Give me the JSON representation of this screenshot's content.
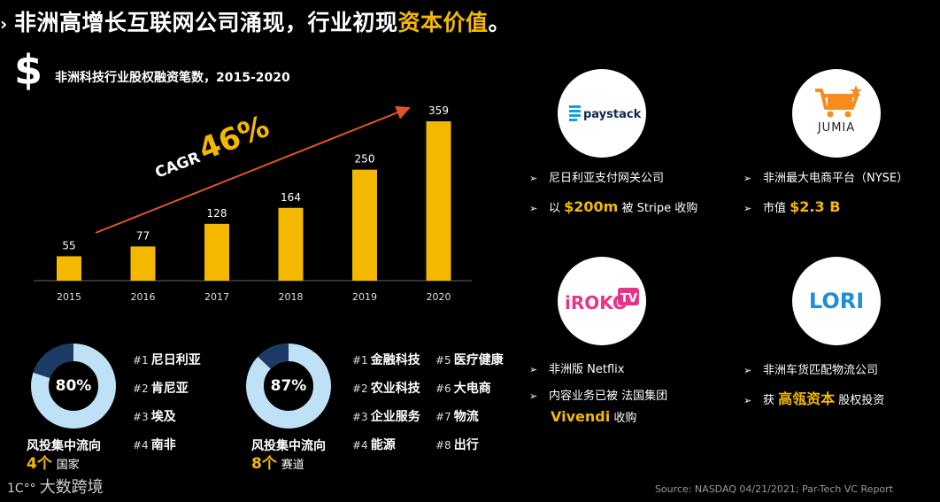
{
  "title": {
    "part1": "非洲高增长互联网公司涌现，行业初现",
    "part2": "资本价值",
    "end": "。"
  },
  "dollar_icon": "dollar-icon",
  "chart_data": {
    "type": "bar",
    "title": "非洲科技行业股权融资笔数，2015-2020",
    "categories": [
      "2015",
      "2016",
      "2017",
      "2018",
      "2019",
      "2020"
    ],
    "values": [
      55,
      77,
      128,
      164,
      250,
      359
    ],
    "ylim": [
      0,
      359
    ],
    "annotation": {
      "prefix": "CAGR",
      "value": "46%"
    },
    "color": "#f5b800"
  },
  "donuts": [
    {
      "percent": 80,
      "label": "80%",
      "flow": "风投集中流向",
      "count": "4个",
      "unit": "国家",
      "items": [
        {
          "rank": "#1",
          "name": "尼日利亚"
        },
        {
          "rank": "#2",
          "name": "肯尼亚"
        },
        {
          "rank": "#3",
          "name": "埃及"
        },
        {
          "rank": "#4",
          "name": "南非"
        }
      ]
    },
    {
      "percent": 87,
      "label": "87%",
      "flow": "风投集中流向",
      "count": "8个",
      "unit": "赛道",
      "items": [
        {
          "rank": "#1",
          "name": "金融科技"
        },
        {
          "rank": "#2",
          "name": "农业科技"
        },
        {
          "rank": "#3",
          "name": "企业服务"
        },
        {
          "rank": "#4",
          "name": "能源"
        },
        {
          "rank": "#5",
          "name": "医疗健康"
        },
        {
          "rank": "#6",
          "name": "大电商"
        },
        {
          "rank": "#7",
          "name": "物流"
        },
        {
          "rank": "#8",
          "name": "出行"
        }
      ]
    }
  ],
  "colors": {
    "donut_light": "#bfe1f5",
    "donut_dark": "#1b3a66",
    "accent": "#f5b800"
  },
  "companies": {
    "paystack": {
      "logo": "paystack",
      "line1": "尼日利亚支付网关公司",
      "line2_pre": "以 ",
      "line2_hl": "$200m",
      "line2_post": " 被 Stripe 收购"
    },
    "jumia": {
      "logo": "JUMIA",
      "line1": "非洲最大电商平台（NYSE）",
      "line2_pre": "市值 ",
      "line2_hl": "$2.3 B"
    },
    "iroko": {
      "logo_main": "iROKO",
      "logo_tv": "TV",
      "line1": "非洲版 Netflix",
      "line2": "内容业务已被 法国集团",
      "line3_hl": "Vivendi",
      "line3_post": " 收购"
    },
    "lori": {
      "logo": "LORI",
      "line1": "非洲车货匹配物流公司",
      "line2_pre": "获 ",
      "line2_hl": "高瓴资本",
      "line2_post": " 股权投资"
    }
  },
  "arrow_glyph": "➢",
  "source": "Source: NASDAQ 04/21/2021; Par-Tech VC Report",
  "brand": {
    "logo": "大数跨境",
    "mark": "1C°°"
  }
}
